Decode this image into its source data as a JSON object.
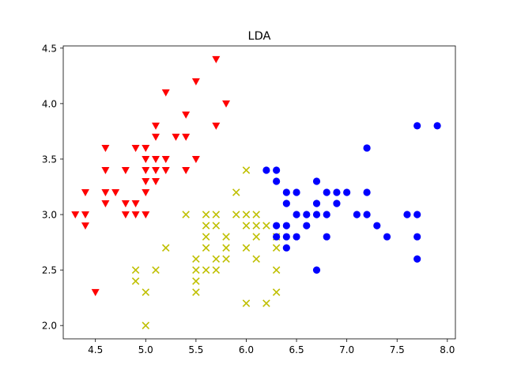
{
  "chart_data": {
    "type": "scatter",
    "title": "LDA",
    "xlabel": "",
    "ylabel": "",
    "xlim": [
      4.18,
      8.08
    ],
    "ylim": [
      1.88,
      4.52
    ],
    "xticks": [
      "4.5",
      "5.0",
      "5.5",
      "6.0",
      "6.5",
      "7.0",
      "7.5",
      "8.0"
    ],
    "xtick_values": [
      4.5,
      5.0,
      5.5,
      6.0,
      6.5,
      7.0,
      7.5,
      8.0
    ],
    "yticks": [
      "2.0",
      "2.5",
      "3.0",
      "3.5",
      "4.0",
      "4.5"
    ],
    "ytick_values": [
      2.0,
      2.5,
      3.0,
      3.5,
      4.0,
      4.5
    ],
    "grid": false,
    "legend": "none",
    "series": [
      {
        "marker": "triangle-down",
        "color": "#ff0000",
        "points": [
          [
            5.7,
            4.4
          ],
          [
            5.5,
            4.2
          ],
          [
            5.2,
            4.1
          ],
          [
            5.8,
            4.0
          ],
          [
            5.4,
            3.9
          ],
          [
            5.1,
            3.8
          ],
          [
            5.7,
            3.8
          ],
          [
            5.1,
            3.7
          ],
          [
            5.3,
            3.7
          ],
          [
            5.4,
            3.7
          ],
          [
            4.6,
            3.6
          ],
          [
            4.9,
            3.6
          ],
          [
            5.0,
            3.6
          ],
          [
            5.0,
            3.5
          ],
          [
            5.1,
            3.5
          ],
          [
            5.2,
            3.5
          ],
          [
            5.5,
            3.5
          ],
          [
            4.6,
            3.4
          ],
          [
            5.0,
            3.4
          ],
          [
            5.1,
            3.4
          ],
          [
            5.2,
            3.4
          ],
          [
            4.8,
            3.4
          ],
          [
            5.4,
            3.4
          ],
          [
            5.0,
            3.3
          ],
          [
            5.1,
            3.3
          ],
          [
            4.4,
            3.2
          ],
          [
            4.6,
            3.2
          ],
          [
            4.7,
            3.2
          ],
          [
            5.0,
            3.2
          ],
          [
            4.6,
            3.1
          ],
          [
            4.8,
            3.1
          ],
          [
            4.9,
            3.1
          ],
          [
            4.3,
            3.0
          ],
          [
            4.4,
            3.0
          ],
          [
            4.8,
            3.0
          ],
          [
            4.9,
            3.0
          ],
          [
            5.0,
            3.0
          ],
          [
            4.4,
            2.9
          ],
          [
            4.5,
            2.3
          ]
        ]
      },
      {
        "marker": "x",
        "color": "#bfbf00",
        "points": [
          [
            6.0,
            3.4
          ],
          [
            5.9,
            3.2
          ],
          [
            5.4,
            3.0
          ],
          [
            5.6,
            3.0
          ],
          [
            5.7,
            3.0
          ],
          [
            5.9,
            3.0
          ],
          [
            6.0,
            3.0
          ],
          [
            6.1,
            3.0
          ],
          [
            5.6,
            2.9
          ],
          [
            5.7,
            2.9
          ],
          [
            6.0,
            2.9
          ],
          [
            6.1,
            2.9
          ],
          [
            6.2,
            2.9
          ],
          [
            5.6,
            2.8
          ],
          [
            5.8,
            2.8
          ],
          [
            6.1,
            2.8
          ],
          [
            6.3,
            2.8
          ],
          [
            5.6,
            2.7
          ],
          [
            5.8,
            2.7
          ],
          [
            6.0,
            2.7
          ],
          [
            5.2,
            2.7
          ],
          [
            6.3,
            2.7
          ],
          [
            5.5,
            2.6
          ],
          [
            5.7,
            2.6
          ],
          [
            5.8,
            2.6
          ],
          [
            6.1,
            2.6
          ],
          [
            4.9,
            2.5
          ],
          [
            5.1,
            2.5
          ],
          [
            5.5,
            2.5
          ],
          [
            5.6,
            2.5
          ],
          [
            5.7,
            2.5
          ],
          [
            6.3,
            2.5
          ],
          [
            4.9,
            2.4
          ],
          [
            5.5,
            2.4
          ],
          [
            5.0,
            2.3
          ],
          [
            5.5,
            2.3
          ],
          [
            6.3,
            2.3
          ],
          [
            6.0,
            2.2
          ],
          [
            6.2,
            2.2
          ],
          [
            5.0,
            2.0
          ]
        ]
      },
      {
        "marker": "circle",
        "color": "#0000ff",
        "points": [
          [
            7.7,
            3.8
          ],
          [
            7.9,
            3.8
          ],
          [
            7.2,
            3.6
          ],
          [
            6.2,
            3.4
          ],
          [
            6.3,
            3.4
          ],
          [
            6.3,
            3.3
          ],
          [
            6.7,
            3.3
          ],
          [
            6.4,
            3.2
          ],
          [
            6.5,
            3.2
          ],
          [
            6.8,
            3.2
          ],
          [
            6.9,
            3.2
          ],
          [
            7.0,
            3.2
          ],
          [
            7.2,
            3.2
          ],
          [
            6.4,
            3.1
          ],
          [
            6.7,
            3.1
          ],
          [
            6.9,
            3.1
          ],
          [
            6.5,
            3.0
          ],
          [
            6.6,
            3.0
          ],
          [
            6.7,
            3.0
          ],
          [
            6.8,
            3.0
          ],
          [
            7.1,
            3.0
          ],
          [
            7.2,
            3.0
          ],
          [
            7.6,
            3.0
          ],
          [
            7.7,
            3.0
          ],
          [
            6.3,
            2.9
          ],
          [
            6.4,
            2.9
          ],
          [
            6.6,
            2.9
          ],
          [
            7.3,
            2.9
          ],
          [
            6.3,
            2.8
          ],
          [
            6.4,
            2.8
          ],
          [
            6.5,
            2.8
          ],
          [
            6.8,
            2.8
          ],
          [
            7.4,
            2.8
          ],
          [
            7.7,
            2.8
          ],
          [
            6.4,
            2.7
          ],
          [
            7.7,
            2.6
          ],
          [
            6.7,
            2.5
          ]
        ]
      }
    ]
  }
}
